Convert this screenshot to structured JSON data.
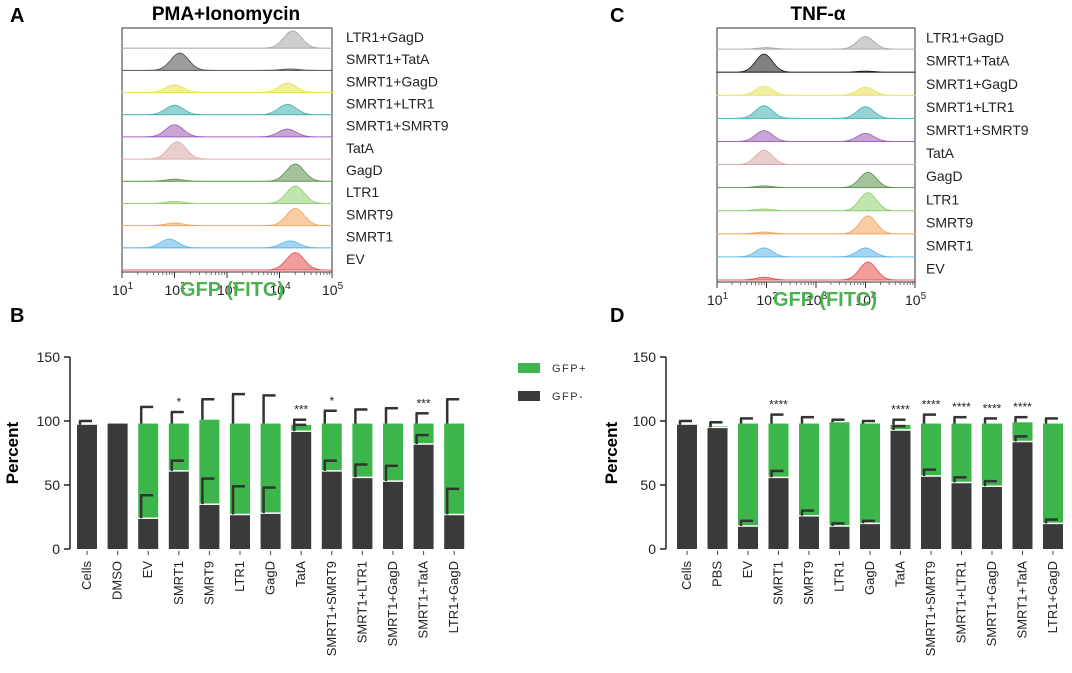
{
  "panels": {
    "A": {
      "label": "A",
      "title": "PMA+Ionomycin"
    },
    "B": {
      "label": "B"
    },
    "C": {
      "label": "C",
      "title": "TNF-α"
    },
    "D": {
      "label": "D"
    }
  },
  "flow": {
    "xlabel": "GFP (FITC)",
    "ticks": [
      "10",
      "10",
      "10",
      "10",
      "10"
    ],
    "exps": [
      "1",
      "2",
      "3",
      "4",
      "5"
    ]
  },
  "legend": {
    "gfp_pos": "GFP+",
    "gfp_neg": "GFP-",
    "gfp_pos_color": "#3cb54a",
    "gfp_neg_color": "#3a3a3a"
  },
  "chart_data": [
    {
      "type": "histogram-stack",
      "panel": "A",
      "title": "PMA+Ionomycin",
      "xlabel": "GFP (FITC)",
      "xscale": "log",
      "xlim": [
        1,
        5
      ],
      "samples": [
        {
          "name": "LTR1+GagD",
          "color": "#a6a6a6",
          "peaks": [
            [
              4.25,
              1.0
            ]
          ]
        },
        {
          "name": "SMRT1+TatA",
          "color": "#4a4a4a",
          "peaks": [
            [
              2.1,
              1.0
            ],
            [
              4.2,
              0.08
            ]
          ]
        },
        {
          "name": "SMRT1+GagD",
          "color": "#e6e05a",
          "peaks": [
            [
              2.0,
              0.45
            ],
            [
              4.15,
              0.55
            ]
          ]
        },
        {
          "name": "SMRT1+LTR1",
          "color": "#3fb1b1",
          "peaks": [
            [
              2.0,
              0.55
            ],
            [
              4.15,
              0.6
            ]
          ]
        },
        {
          "name": "SMRT1+SMRT9",
          "color": "#9b59b6",
          "peaks": [
            [
              2.0,
              0.7
            ],
            [
              4.15,
              0.45
            ]
          ]
        },
        {
          "name": "TatA",
          "color": "#d9a6a6",
          "peaks": [
            [
              2.05,
              1.0
            ]
          ]
        },
        {
          "name": "GagD",
          "color": "#5a8f4a",
          "peaks": [
            [
              2.0,
              0.12
            ],
            [
              4.3,
              1.0
            ]
          ]
        },
        {
          "name": "LTR1",
          "color": "#8ccf6a",
          "peaks": [
            [
              2.0,
              0.12
            ],
            [
              4.3,
              1.0
            ]
          ]
        },
        {
          "name": "SMRT9",
          "color": "#f2a45a",
          "peaks": [
            [
              2.0,
              0.15
            ],
            [
              4.3,
              1.0
            ]
          ]
        },
        {
          "name": "SMRT1",
          "color": "#5ab4e6",
          "peaks": [
            [
              1.9,
              0.5
            ],
            [
              4.2,
              0.4
            ]
          ]
        },
        {
          "name": "EV",
          "color": "#e84a4a",
          "peaks": [
            [
              4.3,
              1.0
            ]
          ]
        }
      ]
    },
    {
      "type": "histogram-stack",
      "panel": "C",
      "title": "TNF-α",
      "xlabel": "GFP (FITC)",
      "xscale": "log",
      "xlim": [
        1,
        5
      ],
      "samples": [
        {
          "name": "LTR1+GagD",
          "color": "#a6a6a6",
          "peaks": [
            [
              2.0,
              0.08
            ],
            [
              4.0,
              0.7
            ]
          ]
        },
        {
          "name": "SMRT1+TatA",
          "color": "#1a1a1a",
          "peaks": [
            [
              1.95,
              1.0
            ],
            [
              4.0,
              0.06
            ]
          ]
        },
        {
          "name": "SMRT1+GagD",
          "color": "#e6e05a",
          "peaks": [
            [
              1.95,
              0.5
            ],
            [
              4.0,
              0.45
            ]
          ]
        },
        {
          "name": "SMRT1+LTR1",
          "color": "#3fb1b1",
          "peaks": [
            [
              1.95,
              0.7
            ],
            [
              4.0,
              0.65
            ]
          ]
        },
        {
          "name": "SMRT1+SMRT9",
          "color": "#9b59b6",
          "peaks": [
            [
              1.95,
              0.6
            ],
            [
              4.0,
              0.45
            ]
          ]
        },
        {
          "name": "TatA",
          "color": "#d9a6a6",
          "peaks": [
            [
              1.95,
              0.8
            ]
          ]
        },
        {
          "name": "GagD",
          "color": "#5a8f4a",
          "peaks": [
            [
              1.95,
              0.1
            ],
            [
              4.05,
              0.85
            ]
          ]
        },
        {
          "name": "LTR1",
          "color": "#8ccf6a",
          "peaks": [
            [
              1.95,
              0.1
            ],
            [
              4.05,
              1.0
            ]
          ]
        },
        {
          "name": "SMRT9",
          "color": "#f2a45a",
          "peaks": [
            [
              1.95,
              0.1
            ],
            [
              4.05,
              1.0
            ]
          ]
        },
        {
          "name": "SMRT1",
          "color": "#5ab4e6",
          "peaks": [
            [
              1.95,
              0.5
            ],
            [
              4.0,
              0.5
            ]
          ]
        },
        {
          "name": "EV",
          "color": "#e84a4a",
          "peaks": [
            [
              1.95,
              0.15
            ],
            [
              4.05,
              1.0
            ]
          ]
        }
      ]
    },
    {
      "type": "bar",
      "panel": "B",
      "stacked": true,
      "ylabel": "Percent",
      "ylim": [
        0,
        150
      ],
      "yticks": [
        0,
        50,
        100,
        150
      ],
      "categories": [
        "Cells",
        "DMSO",
        "EV",
        "SMRT1",
        "SMRT9",
        "LTR1",
        "GagD",
        "TatA",
        "SMRT1+SMRT9",
        "SMRT1+LTR1",
        "SMRT1+GagD",
        "SMRT1+TatA",
        "LTR1+GagD"
      ],
      "series": [
        {
          "name": "GFP-",
          "color": "#3a3a3a",
          "values": [
            97,
            98,
            24,
            61,
            35,
            27,
            28,
            92,
            61,
            56,
            53,
            82,
            27
          ],
          "error": [
            3,
            0,
            18,
            8,
            20,
            22,
            20,
            5,
            8,
            10,
            12,
            7,
            20
          ]
        },
        {
          "name": "GFP+",
          "color": "#3cb54a",
          "values": [
            0,
            0,
            74,
            37,
            66,
            71,
            70,
            5,
            37,
            42,
            45,
            16,
            71
          ],
          "error": [
            0,
            0,
            13,
            9,
            16,
            23,
            22,
            4,
            10,
            11,
            12,
            8,
            19
          ]
        }
      ],
      "significance": {
        "SMRT1": "*",
        "TatA": "***",
        "SMRT1+SMRT9": "*",
        "SMRT1+TatA": "***"
      }
    },
    {
      "type": "bar",
      "panel": "D",
      "stacked": true,
      "ylabel": "Percent",
      "ylim": [
        0,
        150
      ],
      "yticks": [
        0,
        50,
        100,
        150
      ],
      "categories": [
        "Cells",
        "PBS",
        "EV",
        "SMRT1",
        "SMRT9",
        "LTR1",
        "GagD",
        "TatA",
        "SMRT1+SMRT9",
        "SMRT1+LTR1",
        "SMRT1+GagD",
        "SMRT1+TatA",
        "LTR1+GagD"
      ],
      "series": [
        {
          "name": "GFP-",
          "color": "#3a3a3a",
          "values": [
            97,
            95,
            18,
            56,
            26,
            18,
            20,
            93,
            57,
            52,
            49,
            84,
            20
          ],
          "error": [
            3,
            4,
            4,
            5,
            4,
            2,
            2,
            3,
            5,
            4,
            4,
            4,
            3
          ]
        },
        {
          "name": "GFP+",
          "color": "#3cb54a",
          "values": [
            0,
            1,
            80,
            42,
            72,
            81,
            78,
            4,
            41,
            46,
            49,
            15,
            78
          ],
          "error": [
            0,
            3,
            4,
            7,
            5,
            2,
            2,
            4,
            7,
            5,
            4,
            4,
            4
          ]
        }
      ],
      "significance": {
        "SMRT1": "****",
        "TatA": "****",
        "SMRT1+SMRT9": "****",
        "SMRT1+LTR1": "****",
        "SMRT1+GagD": "****",
        "SMRT1+TatA": "****"
      }
    }
  ]
}
